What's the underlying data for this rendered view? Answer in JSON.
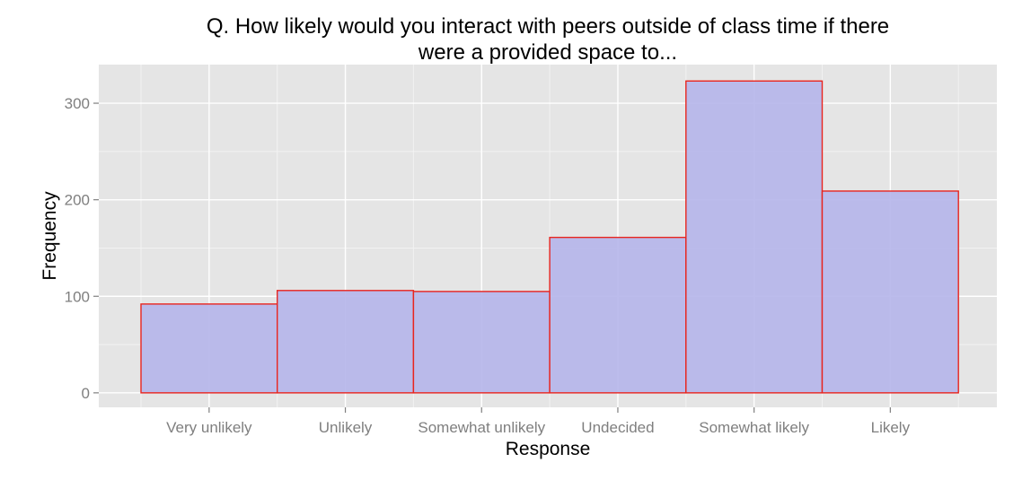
{
  "chart_data": {
    "type": "bar",
    "title": "Q. How likely would you interact with peers outside of class time if there were a provided space to...",
    "title_lines": [
      "Q. How likely would you interact with peers outside of class time if there",
      "were a provided space to..."
    ],
    "xlabel": "Response",
    "ylabel": "Frequency",
    "categories": [
      "Very unlikely",
      "Unlikely",
      "Somewhat unlikely",
      "Undecided",
      "Somewhat likely",
      "Likely"
    ],
    "values": [
      92,
      106,
      105,
      161,
      323,
      209
    ],
    "y_ticks": [
      0,
      100,
      200,
      300
    ],
    "y_tick_labels": [
      "0",
      "100",
      "200",
      "300"
    ],
    "ylim": [
      -15,
      340
    ],
    "grid": true,
    "legend": "none",
    "colors": {
      "panel_background": "#e5e5e5",
      "grid_major": "#ffffff",
      "grid_minor": "#f2f2f2",
      "bar_fill": "#b6b6ea",
      "bar_outline": "#e8251f",
      "tick_mark": "#7f7f7f"
    }
  }
}
